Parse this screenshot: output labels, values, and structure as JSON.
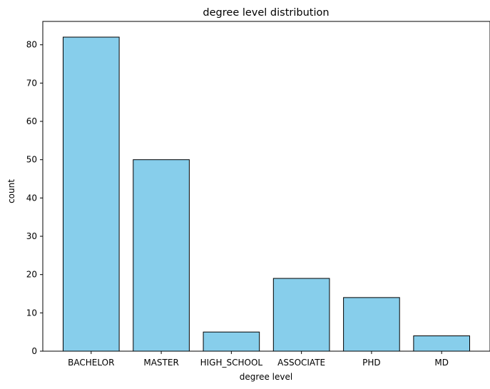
{
  "chart_data": {
    "type": "bar",
    "title": "degree level distribution",
    "xlabel": "degree level",
    "ylabel": "count",
    "categories": [
      "BACHELOR",
      "MASTER",
      "HIGH_SCHOOL",
      "ASSOCIATE",
      "PHD",
      "MD"
    ],
    "values": [
      82,
      50,
      5,
      19,
      14,
      4
    ],
    "ylim": [
      0,
      86.1
    ],
    "yticks": [
      0,
      10,
      20,
      30,
      40,
      50,
      60,
      70,
      80
    ],
    "grid": false,
    "legend": "none",
    "bar_color": "#87CEEB",
    "edge_color": "#000000"
  }
}
